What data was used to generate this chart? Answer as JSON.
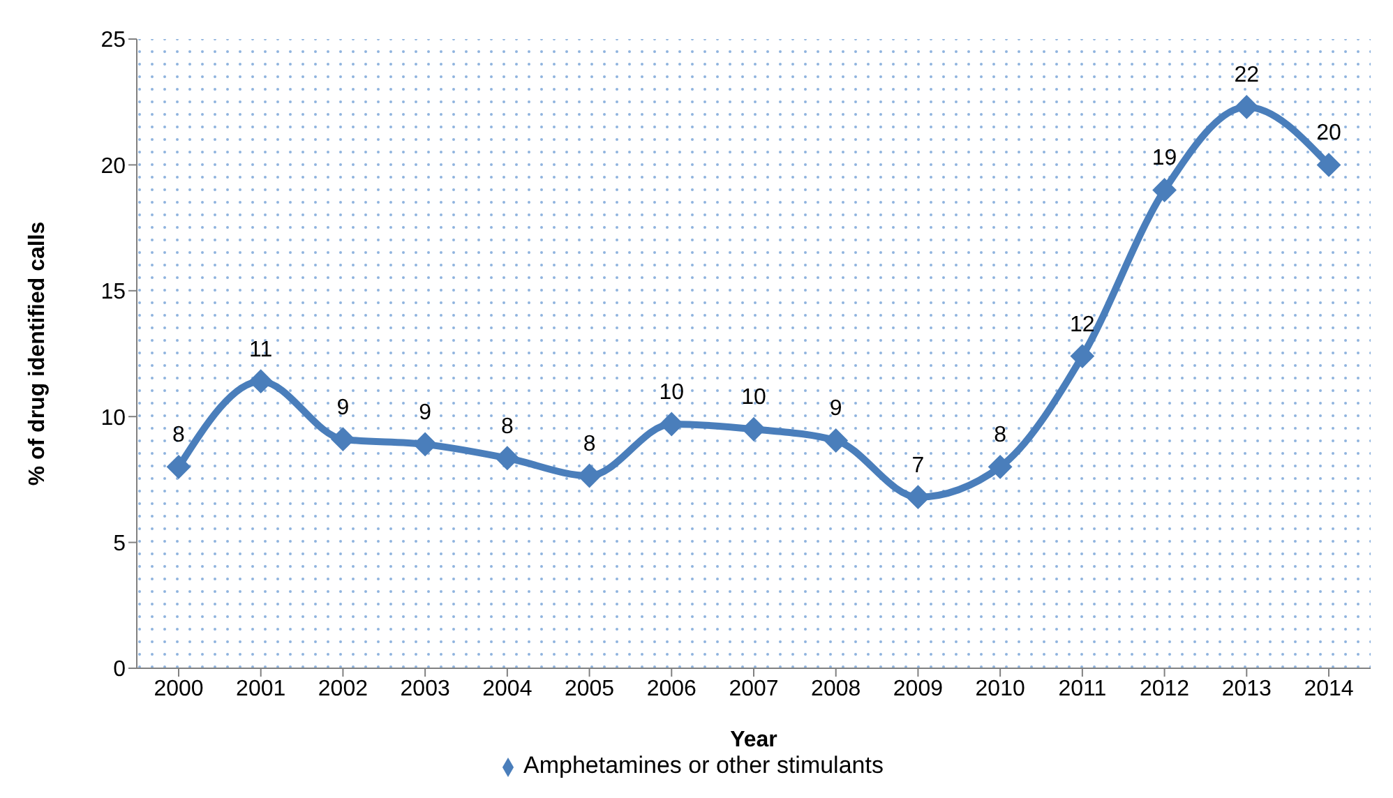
{
  "chart_data": {
    "type": "line",
    "xlabel": "Year",
    "ylabel": "% of drug identified calls",
    "categories": [
      "2000",
      "2001",
      "2002",
      "2003",
      "2004",
      "2005",
      "2006",
      "2007",
      "2008",
      "2009",
      "2010",
      "2011",
      "2012",
      "2013",
      "2014"
    ],
    "series": [
      {
        "name": "Amphetamines or other stimulants",
        "color": "#4a7ebb",
        "values": [
          8.0,
          11.4,
          9.1,
          8.9,
          8.35,
          7.65,
          9.7,
          9.5,
          9.05,
          6.8,
          8.0,
          12.4,
          19.0,
          22.3,
          20.0
        ],
        "value_labels": [
          "8",
          "11",
          "9",
          "9",
          "8",
          "8",
          "10",
          "10",
          "9",
          "7",
          "8",
          "12",
          "19",
          "22",
          "20"
        ]
      }
    ],
    "ylim": [
      0,
      25
    ],
    "yticks": [
      0,
      5,
      10,
      15,
      20,
      25
    ],
    "grid": false,
    "legend": "bottom",
    "marker": "diamond",
    "line_style": "solid"
  }
}
